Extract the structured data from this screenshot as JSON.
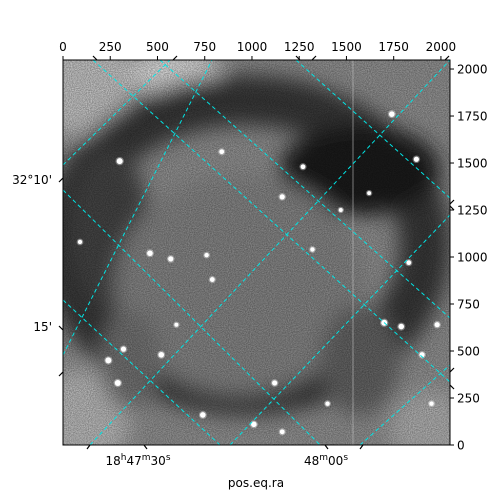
{
  "chart_data": {
    "type": "heatmap",
    "xlabel": "pos.eq.ra",
    "ylabel": "",
    "pixel_axes": {
      "x_range": [
        0,
        2048
      ],
      "y_range": [
        0,
        2048
      ],
      "x_ticks": [
        0,
        250,
        500,
        750,
        1000,
        1250,
        1500,
        1750,
        2000
      ],
      "y_ticks": [
        0,
        250,
        500,
        750,
        1000,
        1250,
        1500,
        1750,
        2000
      ]
    },
    "world_axes": {
      "ra_ticks": [
        {
          "pre": "18",
          "h": "h",
          "m_val": "47",
          "m": "m",
          "s_val": "30",
          "s": "s"
        },
        {
          "pre": "",
          "h": "",
          "m_val": "48",
          "m": "m",
          "s_val": "00",
          "s": "s"
        }
      ],
      "dec_ticks": [
        "32°10'",
        "15'"
      ]
    },
    "grid": true,
    "grid_color": "#00e5e5",
    "colormap": "gray",
    "image_description": "astronomical field; dark ring-like band surrounds a lighter central region, bright stars scattered",
    "stars": [
      {
        "x": 300,
        "y": 1510,
        "b": 1.0
      },
      {
        "x": 460,
        "y": 1020,
        "b": 0.9
      },
      {
        "x": 570,
        "y": 990,
        "b": 0.8
      },
      {
        "x": 790,
        "y": 880,
        "b": 0.7
      },
      {
        "x": 760,
        "y": 1010,
        "b": 0.6
      },
      {
        "x": 840,
        "y": 1560,
        "b": 0.7
      },
      {
        "x": 1160,
        "y": 1320,
        "b": 0.8
      },
      {
        "x": 1270,
        "y": 1480,
        "b": 0.7
      },
      {
        "x": 1320,
        "y": 1040,
        "b": 0.6
      },
      {
        "x": 1470,
        "y": 1250,
        "b": 0.5
      },
      {
        "x": 1740,
        "y": 1760,
        "b": 0.9
      },
      {
        "x": 1870,
        "y": 1520,
        "b": 0.8
      },
      {
        "x": 1830,
        "y": 970,
        "b": 0.7
      },
      {
        "x": 1700,
        "y": 650,
        "b": 1.0
      },
      {
        "x": 1790,
        "y": 630,
        "b": 0.9
      },
      {
        "x": 1980,
        "y": 640,
        "b": 0.8
      },
      {
        "x": 1900,
        "y": 480,
        "b": 0.8
      },
      {
        "x": 240,
        "y": 450,
        "b": 1.0
      },
      {
        "x": 290,
        "y": 330,
        "b": 1.0
      },
      {
        "x": 320,
        "y": 510,
        "b": 0.8
      },
      {
        "x": 520,
        "y": 480,
        "b": 0.9
      },
      {
        "x": 740,
        "y": 160,
        "b": 0.9
      },
      {
        "x": 1120,
        "y": 330,
        "b": 0.8
      },
      {
        "x": 1010,
        "y": 110,
        "b": 0.9
      },
      {
        "x": 1160,
        "y": 70,
        "b": 0.7
      },
      {
        "x": 90,
        "y": 1080,
        "b": 0.6
      },
      {
        "x": 600,
        "y": 640,
        "b": 0.5
      },
      {
        "x": 1620,
        "y": 1340,
        "b": 0.5
      },
      {
        "x": 1950,
        "y": 220,
        "b": 0.6
      },
      {
        "x": 1400,
        "y": 220,
        "b": 0.6
      }
    ]
  }
}
